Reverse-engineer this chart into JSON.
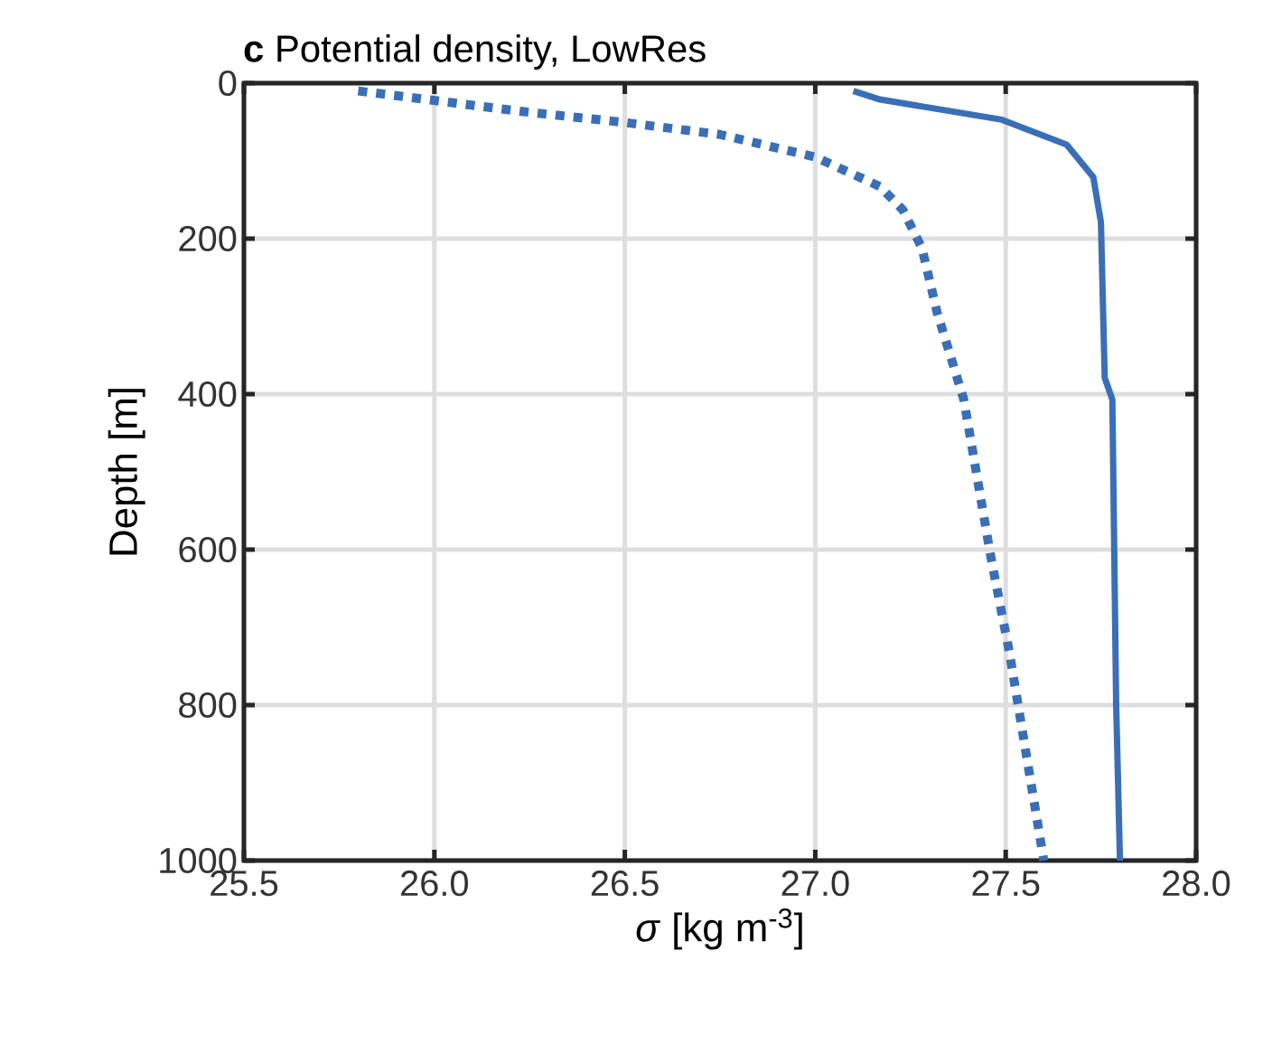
{
  "chart_data": {
    "type": "line",
    "title": "**c** Potential density, LowRes",
    "xlabel": "*σ* [kg m$^{-3}$]",
    "ylabel": "Depth [m]",
    "xlim": [
      25.5,
      28.0
    ],
    "xticks": [
      25.5,
      {
        "value": 26,
        "label": "26.0"
      },
      26.5,
      {
        "value": 27,
        "label": "27.0"
      },
      27.5,
      {
        "value": 28,
        "label": "28.0"
      }
    ],
    "ylim": [
      1000,
      0
    ],
    "yticks": [
      0,
      200,
      400,
      600,
      800,
      1000
    ],
    "grid": true,
    "marker": "none",
    "series": [
      {
        "color": "#3a6fb7",
        "line_style": "dotted",
        "x": [
          25.8,
          25.98,
          26.24,
          26.49,
          26.75,
          27.0,
          27.17,
          27.23,
          27.28,
          27.32,
          27.39,
          27.46,
          27.51,
          27.6
        ],
        "values": [
          10,
          21,
          37,
          50,
          66,
          95,
          133,
          163,
          212,
          295,
          407,
          607,
          733,
          1000
        ]
      },
      {
        "color": "#3a6fb7",
        "line_style": "solid",
        "x": [
          27.1,
          27.17,
          27.49,
          27.66,
          27.73,
          27.75,
          27.76,
          27.78,
          27.79,
          27.8
        ],
        "values": [
          10,
          21,
          47,
          79,
          121,
          179,
          379,
          407,
          800,
          1000
        ]
      }
    ]
  }
}
